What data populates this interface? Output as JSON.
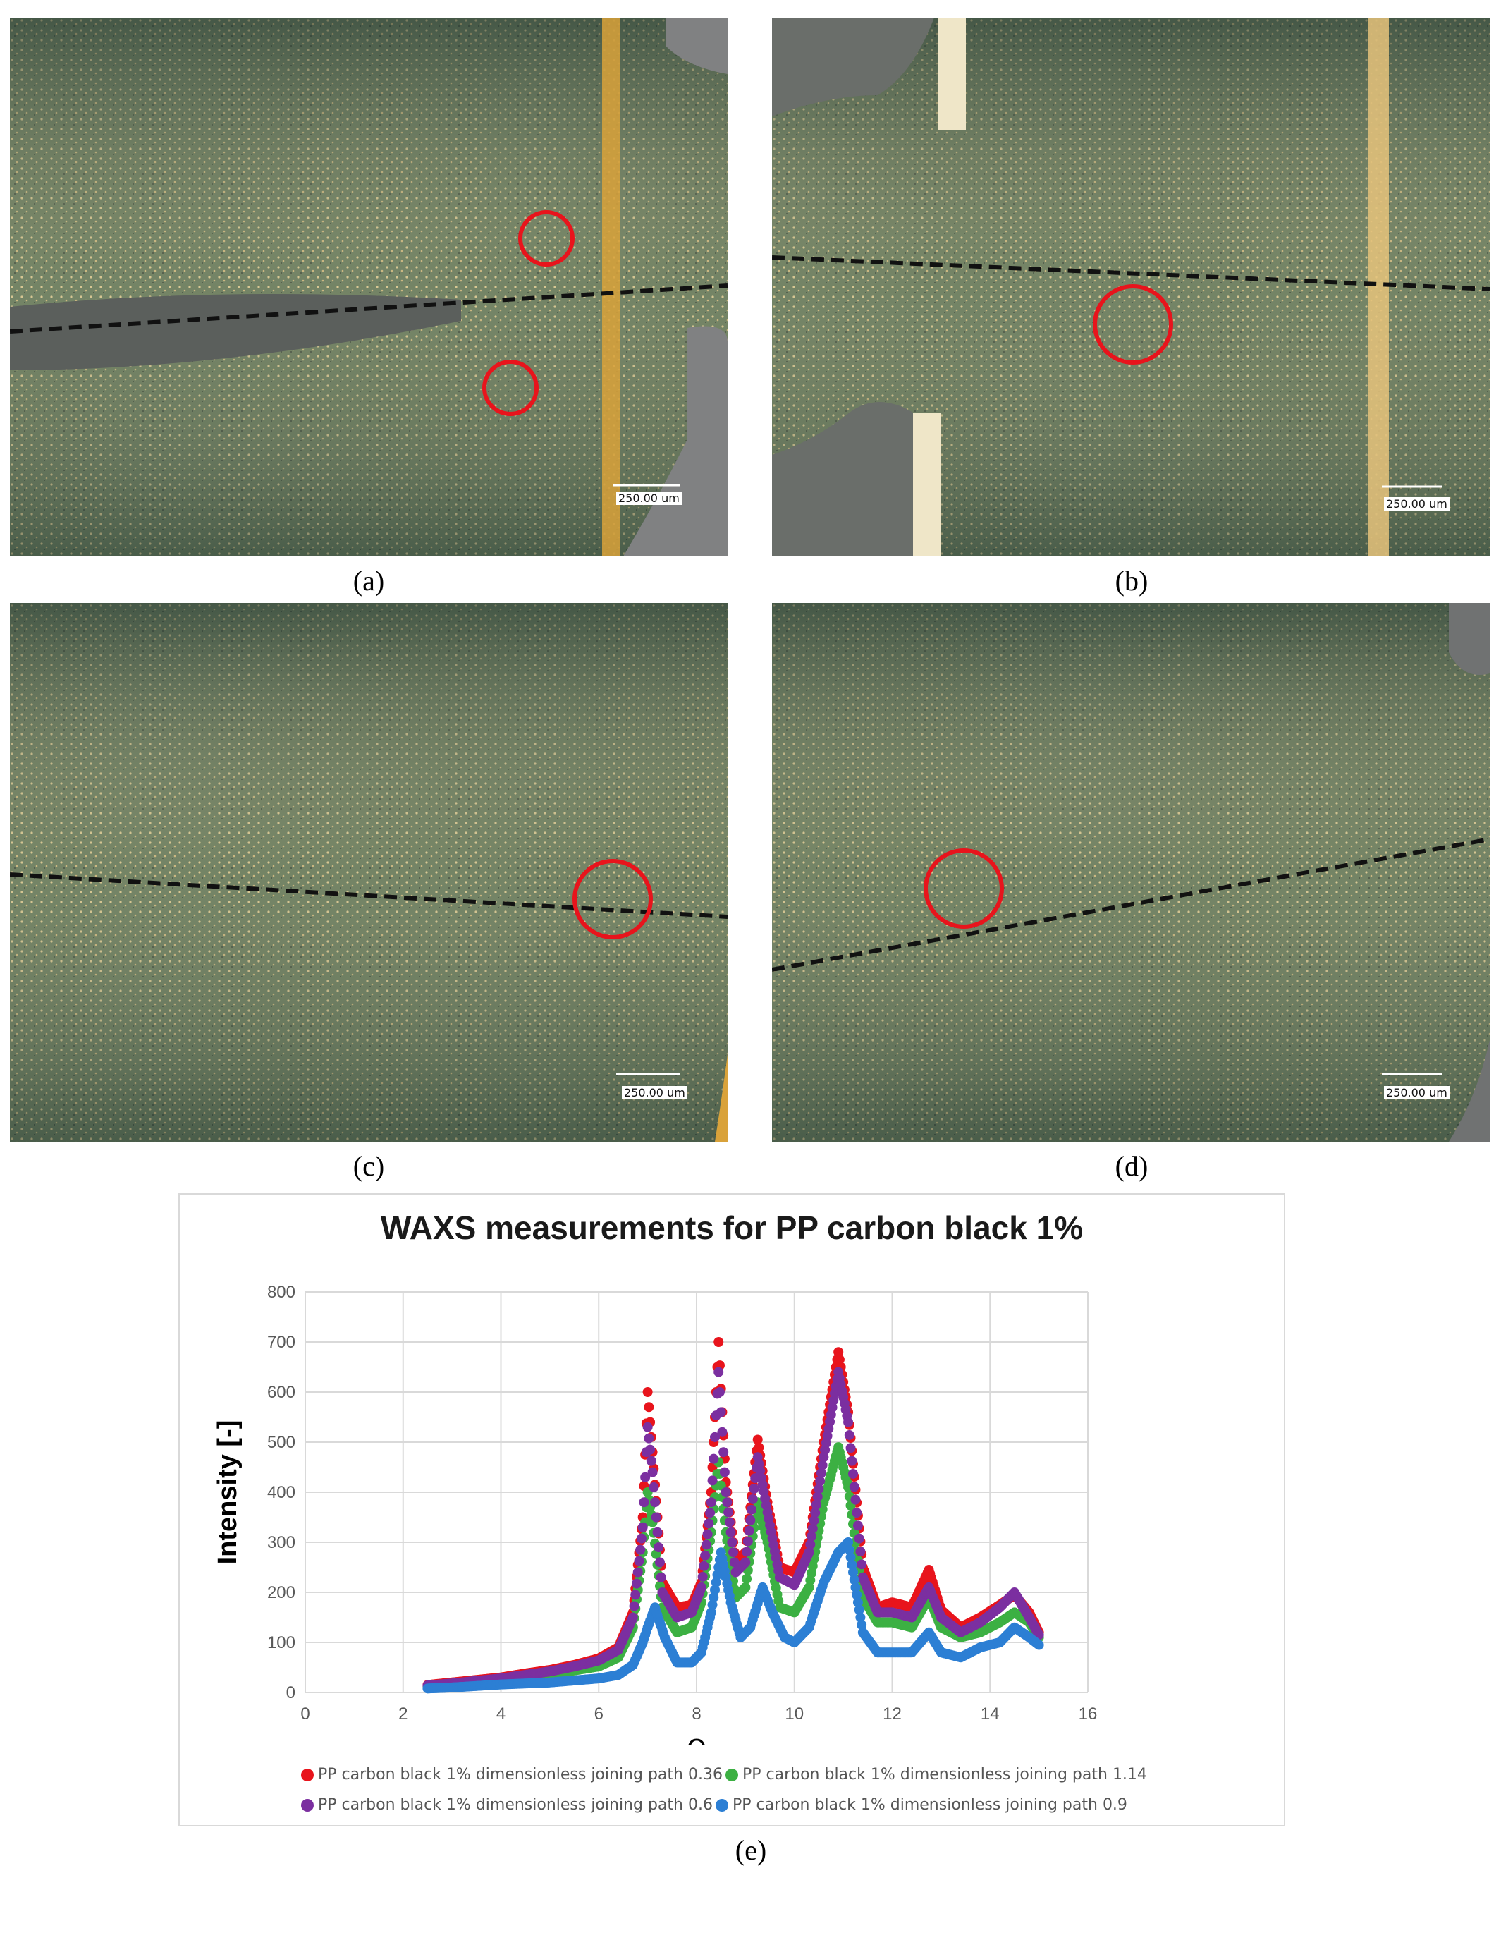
{
  "panels": [
    {
      "label": "(a)",
      "scale_bar": "250.00 um"
    },
    {
      "label": "(b)",
      "scale_bar": "250.00 um"
    },
    {
      "label": "(c)",
      "scale_bar": "250.00 um"
    },
    {
      "label": "(d)",
      "scale_bar": "250.00 um"
    }
  ],
  "chart_panel_label": "(e)",
  "colors": {
    "micro_bg": "#6b7d63",
    "micro_light": "#c9b98a",
    "micro_dark": "#3e4f45",
    "circle": "#e8141c",
    "weld_line": "#d9a23a",
    "grid": "#d9d9d9"
  },
  "chart_data": {
    "type": "scatter",
    "title": "WAXS measurements for PP carbon black 1%",
    "xlabel": "Θ",
    "ylabel": "Intensity [-]",
    "xlim": [
      0,
      16
    ],
    "ylim": [
      0,
      800
    ],
    "xticks": [
      0,
      2,
      4,
      6,
      8,
      10,
      12,
      14,
      16
    ],
    "yticks": [
      0,
      100,
      200,
      300,
      400,
      500,
      600,
      700,
      800
    ],
    "grid": true,
    "legend_position": "bottom",
    "series": [
      {
        "name": "PP carbon black 1% dimensionless joining path 0.36",
        "color": "#e8141c",
        "points": [
          [
            2.5,
            15
          ],
          [
            3,
            20
          ],
          [
            3.5,
            25
          ],
          [
            4,
            30
          ],
          [
            4.5,
            38
          ],
          [
            5,
            45
          ],
          [
            5.5,
            55
          ],
          [
            6,
            68
          ],
          [
            6.4,
            90
          ],
          [
            6.7,
            160
          ],
          [
            6.9,
            350
          ],
          [
            7.0,
            600
          ],
          [
            7.1,
            480
          ],
          [
            7.3,
            220
          ],
          [
            7.6,
            170
          ],
          [
            7.9,
            175
          ],
          [
            8.1,
            220
          ],
          [
            8.3,
            400
          ],
          [
            8.45,
            700
          ],
          [
            8.6,
            420
          ],
          [
            8.8,
            260
          ],
          [
            9.0,
            280
          ],
          [
            9.25,
            505
          ],
          [
            9.45,
            380
          ],
          [
            9.7,
            250
          ],
          [
            10.0,
            240
          ],
          [
            10.3,
            300
          ],
          [
            10.6,
            500
          ],
          [
            10.9,
            680
          ],
          [
            11.1,
            560
          ],
          [
            11.4,
            250
          ],
          [
            11.7,
            170
          ],
          [
            12.0,
            180
          ],
          [
            12.4,
            170
          ],
          [
            12.75,
            245
          ],
          [
            13.0,
            165
          ],
          [
            13.4,
            130
          ],
          [
            13.8,
            150
          ],
          [
            14.2,
            175
          ],
          [
            14.5,
            195
          ],
          [
            14.8,
            160
          ],
          [
            15.0,
            120
          ]
        ]
      },
      {
        "name": "PP carbon black 1% dimensionless joining path 1.14",
        "color": "#3cb043",
        "points": [
          [
            2.5,
            12
          ],
          [
            3,
            16
          ],
          [
            3.5,
            20
          ],
          [
            4,
            25
          ],
          [
            4.5,
            30
          ],
          [
            5,
            36
          ],
          [
            5.5,
            44
          ],
          [
            6,
            52
          ],
          [
            6.4,
            70
          ],
          [
            6.7,
            130
          ],
          [
            6.9,
            280
          ],
          [
            7.0,
            400
          ],
          [
            7.1,
            340
          ],
          [
            7.3,
            170
          ],
          [
            7.6,
            120
          ],
          [
            7.9,
            130
          ],
          [
            8.1,
            180
          ],
          [
            8.3,
            320
          ],
          [
            8.45,
            460
          ],
          [
            8.6,
            320
          ],
          [
            8.8,
            190
          ],
          [
            9.0,
            210
          ],
          [
            9.25,
            380
          ],
          [
            9.45,
            300
          ],
          [
            9.7,
            170
          ],
          [
            10.0,
            160
          ],
          [
            10.3,
            210
          ],
          [
            10.6,
            380
          ],
          [
            10.9,
            490
          ],
          [
            11.1,
            410
          ],
          [
            11.4,
            190
          ],
          [
            11.7,
            140
          ],
          [
            12.0,
            140
          ],
          [
            12.4,
            130
          ],
          [
            12.75,
            190
          ],
          [
            13.0,
            130
          ],
          [
            13.4,
            110
          ],
          [
            13.8,
            120
          ],
          [
            14.2,
            140
          ],
          [
            14.5,
            160
          ],
          [
            14.8,
            140
          ],
          [
            15.0,
            110
          ]
        ]
      },
      {
        "name": "PP carbon black 1% dimensionless joining path 0.6",
        "color": "#7b2fa0",
        "points": [
          [
            2.5,
            14
          ],
          [
            3,
            18
          ],
          [
            3.5,
            23
          ],
          [
            4,
            28
          ],
          [
            4.5,
            35
          ],
          [
            5,
            42
          ],
          [
            5.5,
            52
          ],
          [
            6,
            64
          ],
          [
            6.4,
            85
          ],
          [
            6.7,
            150
          ],
          [
            6.9,
            330
          ],
          [
            7.0,
            530
          ],
          [
            7.1,
            440
          ],
          [
            7.3,
            200
          ],
          [
            7.6,
            150
          ],
          [
            7.9,
            160
          ],
          [
            8.1,
            210
          ],
          [
            8.3,
            380
          ],
          [
            8.45,
            640
          ],
          [
            8.6,
            400
          ],
          [
            8.8,
            240
          ],
          [
            9.0,
            260
          ],
          [
            9.25,
            470
          ],
          [
            9.45,
            360
          ],
          [
            9.7,
            230
          ],
          [
            10.0,
            215
          ],
          [
            10.3,
            280
          ],
          [
            10.6,
            470
          ],
          [
            10.9,
            640
          ],
          [
            11.1,
            540
          ],
          [
            11.4,
            230
          ],
          [
            11.7,
            160
          ],
          [
            12.0,
            160
          ],
          [
            12.4,
            150
          ],
          [
            12.75,
            210
          ],
          [
            13.0,
            150
          ],
          [
            13.4,
            120
          ],
          [
            13.8,
            140
          ],
          [
            14.2,
            170
          ],
          [
            14.5,
            200
          ],
          [
            14.8,
            150
          ],
          [
            15.0,
            115
          ]
        ]
      },
      {
        "name": "PP carbon black 1% dimensionless joining path 0.9",
        "color": "#2c7fd4",
        "points": [
          [
            2.5,
            8
          ],
          [
            3,
            10
          ],
          [
            3.5,
            13
          ],
          [
            4,
            16
          ],
          [
            4.5,
            18
          ],
          [
            5,
            20
          ],
          [
            5.5,
            24
          ],
          [
            6,
            28
          ],
          [
            6.4,
            35
          ],
          [
            6.7,
            55
          ],
          [
            6.9,
            100
          ],
          [
            7.0,
            130
          ],
          [
            7.15,
            170
          ],
          [
            7.35,
            110
          ],
          [
            7.6,
            60
          ],
          [
            7.9,
            60
          ],
          [
            8.1,
            80
          ],
          [
            8.3,
            160
          ],
          [
            8.5,
            280
          ],
          [
            8.7,
            180
          ],
          [
            8.9,
            110
          ],
          [
            9.1,
            130
          ],
          [
            9.35,
            210
          ],
          [
            9.55,
            160
          ],
          [
            9.8,
            110
          ],
          [
            10.0,
            100
          ],
          [
            10.3,
            130
          ],
          [
            10.6,
            220
          ],
          [
            10.9,
            280
          ],
          [
            11.1,
            300
          ],
          [
            11.4,
            120
          ],
          [
            11.7,
            80
          ],
          [
            12.0,
            80
          ],
          [
            12.4,
            80
          ],
          [
            12.75,
            120
          ],
          [
            13.0,
            80
          ],
          [
            13.4,
            70
          ],
          [
            13.8,
            90
          ],
          [
            14.2,
            100
          ],
          [
            14.5,
            130
          ],
          [
            14.8,
            110
          ],
          [
            15.0,
            95
          ]
        ]
      }
    ]
  }
}
